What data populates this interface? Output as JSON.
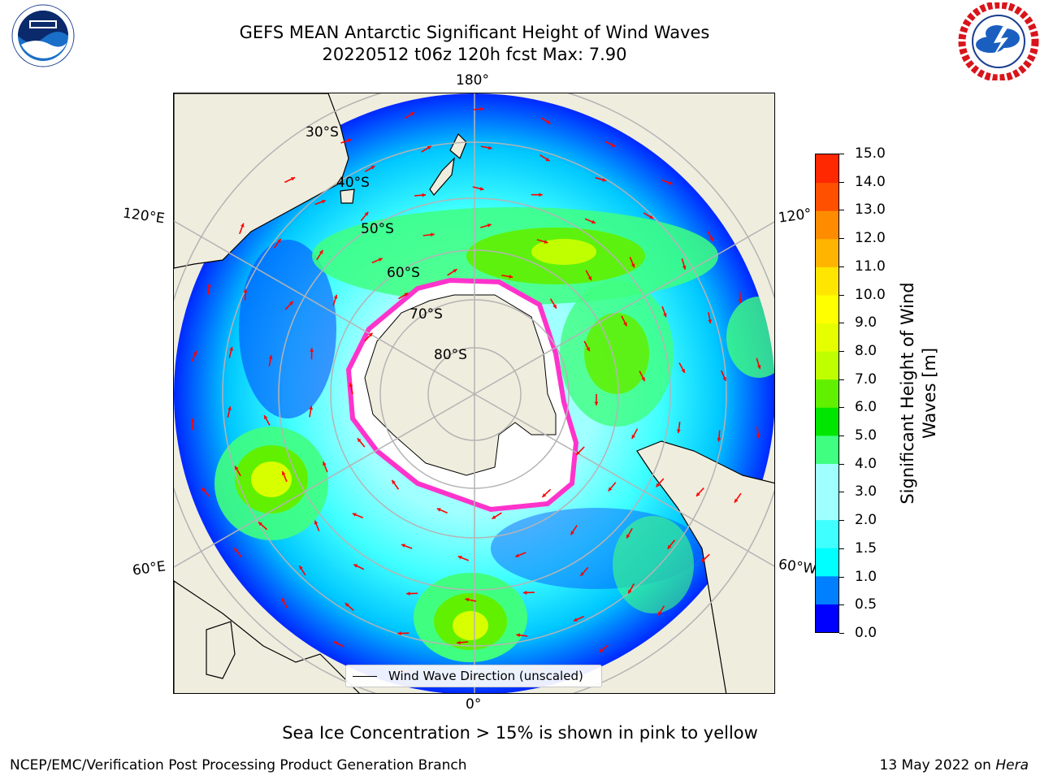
{
  "title_line1": "GEFS MEAN Antarctic Significant Height of Wind Waves",
  "title_line2": "20220512 t06z 120h fcst   Max: 7.90",
  "map": {
    "projection": "south-polar-stereographic",
    "lon_labels": {
      "top": "180°",
      "bottom": "0°",
      "upper_left": "120°E",
      "lower_left": "60°E",
      "upper_right": "120°",
      "lower_right": "60°W"
    },
    "lat_labels": [
      "30°S",
      "40°S",
      "50°S",
      "60°S",
      "70°S",
      "80°S"
    ],
    "colors": {
      "land": "#efedde",
      "ocean_low": "#0000ff",
      "grid": "#b4b4b4",
      "arrows": "#ff0000",
      "ice_edge": "#ff33cc"
    }
  },
  "legend": {
    "label": "Wind Wave Direction (unscaled)"
  },
  "colorbar": {
    "label": "Significant Height of Wind Waves [m]",
    "label_line1": "Significant Height of Wind",
    "label_line2": "Waves [m]",
    "ticks": [
      "0.0",
      "0.5",
      "1.0",
      "1.5",
      "2.0",
      "3.0",
      "4.0",
      "5.0",
      "6.0",
      "7.0",
      "8.0",
      "9.0",
      "10.0",
      "11.0",
      "12.0",
      "13.0",
      "14.0",
      "15.0"
    ],
    "colors": [
      "#0000ff",
      "#0080ff",
      "#00ffff",
      "#40ffff",
      "#a0ffff",
      "#a0ffff",
      "#40ff80",
      "#00e600",
      "#60f000",
      "#c0ff00",
      "#e6ff00",
      "#ffff00",
      "#ffe600",
      "#ffb400",
      "#ff8c00",
      "#ff5000",
      "#ff2800",
      "#ff0000"
    ]
  },
  "subtitle": "Sea Ice Concentration > 15% is shown in pink to yellow",
  "footer_left": "NCEP/EMC/Verification Post Processing Product Generation Branch",
  "footer_right_prefix": "13 May 2022 on ",
  "footer_right_machine": "Hera",
  "logos": {
    "left": "noaa-logo",
    "right": "nws-logo"
  }
}
